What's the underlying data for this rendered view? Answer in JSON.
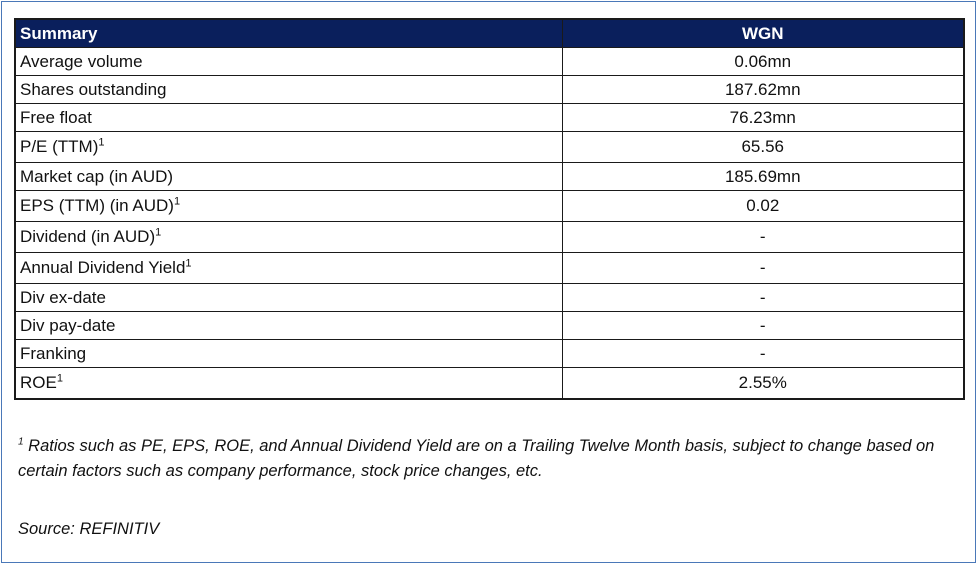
{
  "table": {
    "header": {
      "label": "Summary",
      "ticker": "WGN"
    },
    "rows": [
      {
        "label": "Average volume",
        "sup": "",
        "value": "0.06mn"
      },
      {
        "label": "Shares outstanding",
        "sup": "",
        "value": "187.62mn"
      },
      {
        "label": "Free float",
        "sup": "",
        "value": "76.23mn"
      },
      {
        "label": "P/E (TTM)",
        "sup": "1",
        "value": "65.56"
      },
      {
        "label": "Market cap (in AUD)",
        "sup": "",
        "value": "185.69mn"
      },
      {
        "label": "EPS (TTM) (in AUD)",
        "sup": "1",
        "value": "0.02"
      },
      {
        "label": "Dividend (in AUD)",
        "sup": "1",
        "value": "-"
      },
      {
        "label": "Annual Dividend Yield",
        "sup": "1",
        "value": "-"
      },
      {
        "label": "Div ex-date",
        "sup": "",
        "value": "-"
      },
      {
        "label": "Div pay-date",
        "sup": "",
        "value": "-"
      },
      {
        "label": "Franking",
        "sup": "",
        "value": "-"
      },
      {
        "label": "ROE",
        "sup": "1",
        "value": "2.55%"
      }
    ]
  },
  "footnote": {
    "marker": "1",
    "text": "Ratios such as PE, EPS, ROE, and Annual Dividend Yield are on a Trailing Twelve Month basis, subject to change based on certain factors such as company performance, stock price changes, etc."
  },
  "source": "Source: REFINITIV"
}
